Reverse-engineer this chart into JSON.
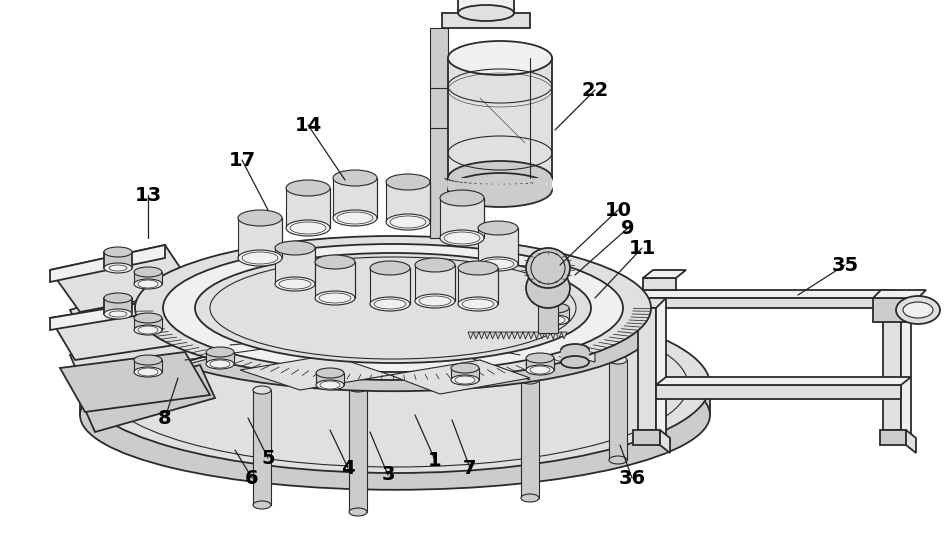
{
  "bg_color": "#ffffff",
  "line_color": "#2a2a2a",
  "lw_main": 1.3,
  "lw_thin": 0.8,
  "lw_teeth": 0.6,
  "figsize": [
    9.5,
    5.43
  ],
  "dpi": 100,
  "annotations": [
    [
      "1",
      435,
      460,
      415,
      415
    ],
    [
      "3",
      388,
      475,
      370,
      432
    ],
    [
      "4",
      348,
      468,
      330,
      430
    ],
    [
      "5",
      268,
      458,
      248,
      418
    ],
    [
      "6",
      252,
      478,
      235,
      450
    ],
    [
      "7",
      470,
      468,
      452,
      420
    ],
    [
      "8",
      165,
      418,
      178,
      378
    ],
    [
      "9",
      628,
      228,
      575,
      275
    ],
    [
      "10",
      618,
      210,
      560,
      265
    ],
    [
      "11",
      642,
      248,
      595,
      298
    ],
    [
      "13",
      148,
      195,
      148,
      238
    ],
    [
      "14",
      308,
      125,
      345,
      180
    ],
    [
      "17",
      242,
      160,
      268,
      210
    ],
    [
      "22",
      595,
      90,
      555,
      130
    ],
    [
      "35",
      845,
      265,
      798,
      295
    ],
    [
      "36",
      632,
      478,
      620,
      445
    ]
  ]
}
